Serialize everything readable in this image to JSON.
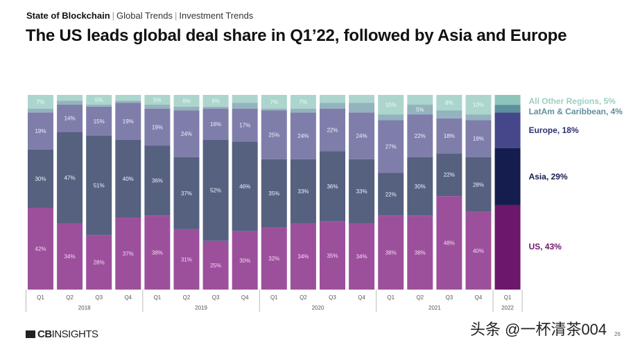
{
  "breadcrumb": {
    "items": [
      "State of Blockchain",
      "Global Trends",
      "Investment Trends"
    ],
    "separator": "|"
  },
  "title": "The US leads global deal share in Q1’22, followed by Asia and Europe",
  "footer": {
    "logo": "CBINSIGHTS",
    "watermark": "头条 @一杯清茶004",
    "page_number": "26"
  },
  "chart_data": {
    "type": "bar",
    "stacked": true,
    "unit": "%",
    "categories": [
      "Q1",
      "Q2",
      "Q3",
      "Q4",
      "Q1",
      "Q2",
      "Q3",
      "Q4",
      "Q1",
      "Q2",
      "Q3",
      "Q4",
      "Q1",
      "Q2",
      "Q3",
      "Q4",
      "Q1"
    ],
    "years": [
      {
        "label": "2018",
        "count": 4
      },
      {
        "label": "2019",
        "count": 4
      },
      {
        "label": "2020",
        "count": 4
      },
      {
        "label": "2021",
        "count": 4
      },
      {
        "label": "2022",
        "count": 1
      }
    ],
    "series": [
      {
        "name": "US",
        "color": "#9c509c",
        "highlight_color": "#6c166c",
        "values": [
          42,
          34,
          28,
          37,
          38,
          31,
          25,
          30,
          32,
          34,
          35,
          34,
          38,
          38,
          48,
          40,
          43
        ],
        "labeled": [
          1,
          1,
          1,
          1,
          1,
          1,
          1,
          1,
          1,
          1,
          1,
          1,
          1,
          1,
          1,
          1,
          0
        ]
      },
      {
        "name": "Asia",
        "color": "#56617f",
        "highlight_color": "#141d4d",
        "values": [
          30,
          47,
          51,
          40,
          36,
          37,
          52,
          46,
          35,
          33,
          36,
          33,
          22,
          30,
          22,
          28,
          29
        ],
        "labeled": [
          1,
          1,
          1,
          1,
          1,
          1,
          1,
          1,
          1,
          1,
          1,
          1,
          1,
          1,
          1,
          1,
          0
        ]
      },
      {
        "name": "Europe",
        "color": "#7f7eab",
        "highlight_color": "#45478a",
        "values": [
          19,
          14,
          15,
          19,
          19,
          24,
          16,
          17,
          25,
          24,
          22,
          24,
          27,
          22,
          18,
          19,
          18
        ],
        "labeled": [
          1,
          1,
          1,
          1,
          1,
          1,
          1,
          1,
          1,
          1,
          1,
          1,
          1,
          1,
          1,
          1,
          0
        ]
      },
      {
        "name": "LatAm & Caribbean",
        "color": "#93b3bd",
        "highlight_color": "#5e8f9c",
        "values": [
          2,
          2,
          1,
          1,
          2,
          2,
          1,
          3,
          1,
          2,
          3,
          5,
          3,
          5,
          4,
          3,
          4
        ],
        "labeled": [
          0,
          0,
          0,
          0,
          0,
          0,
          0,
          0,
          0,
          0,
          0,
          0,
          0,
          1,
          0,
          0,
          0
        ]
      },
      {
        "name": "All Other Regions",
        "color": "#acd6cd",
        "highlight_color": "#8dc5bb",
        "values": [
          7,
          3,
          5,
          3,
          5,
          6,
          6,
          4,
          7,
          7,
          4,
          4,
          10,
          5,
          8,
          10,
          5
        ],
        "labeled": [
          1,
          0,
          1,
          0,
          1,
          1,
          1,
          0,
          1,
          1,
          0,
          0,
          1,
          0,
          1,
          1,
          0
        ]
      }
    ],
    "legend": [
      {
        "text": "All Other Regions, 5%",
        "color": "#9ccfc4"
      },
      {
        "text": "LatAm & Caribbean, 4%",
        "color": "#5f8f9b"
      },
      {
        "text": "Europe, 18%",
        "color": "#2e2f6e"
      },
      {
        "text": "Asia, 29%",
        "color": "#141d4d"
      },
      {
        "text": "US, 43%",
        "color": "#6c166c"
      }
    ],
    "legend_placement": "right",
    "ylim": [
      0,
      100
    ],
    "grid": false
  }
}
